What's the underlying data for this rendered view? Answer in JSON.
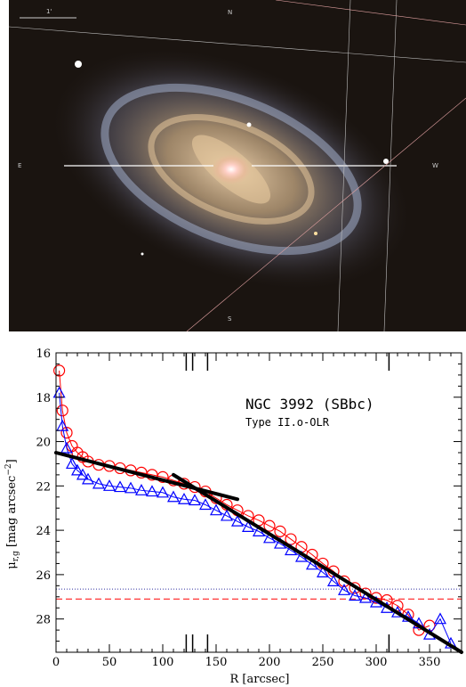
{
  "image": {
    "compass": {
      "n": "N",
      "e": "E",
      "w": "W",
      "s": "S",
      "scale": "1'"
    }
  },
  "chart_data": {
    "type": "scatter",
    "title": "NGC 3992 (SBbc)",
    "subtitle": "Type II.o-OLR",
    "xlabel": "R [arcsec]",
    "ylabel": "μr,g [mag arcsec⁻²]",
    "ylabel_parts": {
      "mu": "μ",
      "sub": "r,g",
      "text": " [mag arcsec",
      "sup": "−2",
      "close": "]"
    },
    "xlim": [
      0,
      380
    ],
    "ylim": [
      29.5,
      16
    ],
    "x_ticks": [
      0,
      50,
      100,
      150,
      200,
      250,
      300,
      350
    ],
    "y_ticks": [
      16,
      18,
      20,
      22,
      24,
      26,
      28
    ],
    "series": [
      {
        "marker": "circle",
        "color": "#ff0000",
        "x": [
          3,
          6,
          10,
          15,
          20,
          25,
          30,
          40,
          50,
          60,
          70,
          80,
          90,
          100,
          110,
          120,
          130,
          140,
          150,
          160,
          170,
          180,
          190,
          200,
          210,
          220,
          230,
          240,
          250,
          260,
          270,
          280,
          290,
          300,
          310,
          320,
          330,
          340,
          350
        ],
        "y": [
          16.8,
          18.6,
          19.6,
          20.2,
          20.5,
          20.7,
          20.9,
          21.05,
          21.1,
          21.2,
          21.3,
          21.4,
          21.5,
          21.6,
          21.75,
          21.9,
          22.05,
          22.25,
          22.55,
          22.85,
          23.1,
          23.35,
          23.55,
          23.8,
          24.05,
          24.4,
          24.75,
          25.1,
          25.5,
          25.85,
          26.3,
          26.6,
          26.85,
          27.05,
          27.15,
          27.4,
          27.8,
          28.5,
          28.3
        ]
      },
      {
        "marker": "triangle",
        "color": "#0000ff",
        "x": [
          3,
          6,
          10,
          15,
          20,
          25,
          30,
          40,
          50,
          60,
          70,
          80,
          90,
          100,
          110,
          120,
          130,
          140,
          150,
          160,
          170,
          180,
          190,
          200,
          210,
          220,
          230,
          240,
          250,
          260,
          270,
          280,
          290,
          300,
          310,
          320,
          330,
          340,
          350,
          360,
          370
        ],
        "y": [
          17.8,
          19.3,
          20.3,
          21.0,
          21.3,
          21.5,
          21.7,
          21.9,
          22.0,
          22.05,
          22.1,
          22.2,
          22.25,
          22.3,
          22.5,
          22.6,
          22.65,
          22.85,
          23.1,
          23.35,
          23.6,
          23.85,
          24.05,
          24.35,
          24.6,
          24.9,
          25.2,
          25.55,
          25.9,
          26.3,
          26.7,
          26.95,
          27.05,
          27.25,
          27.5,
          27.7,
          27.9,
          28.2,
          28.7,
          28.0,
          29.1
        ]
      }
    ],
    "fits": [
      {
        "x": [
          0,
          170
        ],
        "y": [
          20.5,
          22.6
        ]
      },
      {
        "x": [
          110,
          380
        ],
        "y": [
          21.5,
          29.5
        ]
      }
    ],
    "hlines": [
      {
        "y": 26.65,
        "color": "#3030a0",
        "style": "dotted"
      },
      {
        "y": 27.1,
        "color": "#ff0000",
        "style": "dashed"
      }
    ],
    "vticks": [
      122,
      128,
      142,
      312
    ]
  }
}
